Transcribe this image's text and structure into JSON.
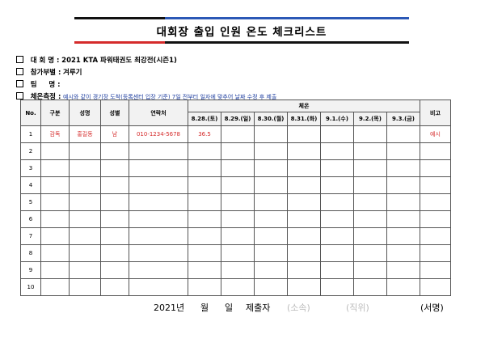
{
  "title": "대회장 출입 인원 온도 체크리스트",
  "info": {
    "event_label": "대 회 명 :",
    "event_value": "2021 KTA 파워태권도 최강전(시즌1)",
    "division_label": "참가부별 :",
    "division_value": "겨루기",
    "team_label": "팀     명 :",
    "team_value": "",
    "temp_label": "체온측정 :",
    "temp_note": "예시와 같이 경기장 도착(등록센터 입장 기준) 7일 전부터 일자에 맞추어 날짜 수정 후 제출"
  },
  "table": {
    "headers": {
      "no": "No.",
      "category": "구분",
      "name": "성명",
      "gender": "성별",
      "contact": "연락처",
      "temperature": "체온",
      "remarks": "비고"
    },
    "dates": [
      "8.28.(토)",
      "8.29.(일)",
      "8.30.(월)",
      "8.31.(화)",
      "9.1.(수)",
      "9.2.(목)",
      "9.3.(금)"
    ],
    "rows": [
      {
        "no": "1",
        "category": "감독",
        "name": "홍길동",
        "gender": "남",
        "contact": "010-1234-5678",
        "temps": [
          "36.5",
          "",
          "",
          "",
          "",
          "",
          ""
        ],
        "remarks": "예시"
      },
      {
        "no": "2",
        "category": "",
        "name": "",
        "gender": "",
        "contact": "",
        "temps": [
          "",
          "",
          "",
          "",
          "",
          "",
          ""
        ],
        "remarks": ""
      },
      {
        "no": "3",
        "category": "",
        "name": "",
        "gender": "",
        "contact": "",
        "temps": [
          "",
          "",
          "",
          "",
          "",
          "",
          ""
        ],
        "remarks": ""
      },
      {
        "no": "4",
        "category": "",
        "name": "",
        "gender": "",
        "contact": "",
        "temps": [
          "",
          "",
          "",
          "",
          "",
          "",
          ""
        ],
        "remarks": ""
      },
      {
        "no": "5",
        "category": "",
        "name": "",
        "gender": "",
        "contact": "",
        "temps": [
          "",
          "",
          "",
          "",
          "",
          "",
          ""
        ],
        "remarks": ""
      },
      {
        "no": "6",
        "category": "",
        "name": "",
        "gender": "",
        "contact": "",
        "temps": [
          "",
          "",
          "",
          "",
          "",
          "",
          ""
        ],
        "remarks": ""
      },
      {
        "no": "7",
        "category": "",
        "name": "",
        "gender": "",
        "contact": "",
        "temps": [
          "",
          "",
          "",
          "",
          "",
          "",
          ""
        ],
        "remarks": ""
      },
      {
        "no": "8",
        "category": "",
        "name": "",
        "gender": "",
        "contact": "",
        "temps": [
          "",
          "",
          "",
          "",
          "",
          "",
          ""
        ],
        "remarks": ""
      },
      {
        "no": "9",
        "category": "",
        "name": "",
        "gender": "",
        "contact": "",
        "temps": [
          "",
          "",
          "",
          "",
          "",
          "",
          ""
        ],
        "remarks": ""
      },
      {
        "no": "10",
        "category": "",
        "name": "",
        "gender": "",
        "contact": "",
        "temps": [
          "",
          "",
          "",
          "",
          "",
          "",
          ""
        ],
        "remarks": ""
      }
    ]
  },
  "footer": {
    "year": "2021년",
    "month": "월",
    "day": "일",
    "submitter": "제출자",
    "affiliation": "(소속)",
    "position": "(직위)",
    "signature": "(서명)"
  },
  "colors": {
    "accent_red": "#d52b2b",
    "accent_blue": "#2b58b6",
    "note_blue": "#1f3fa0"
  }
}
